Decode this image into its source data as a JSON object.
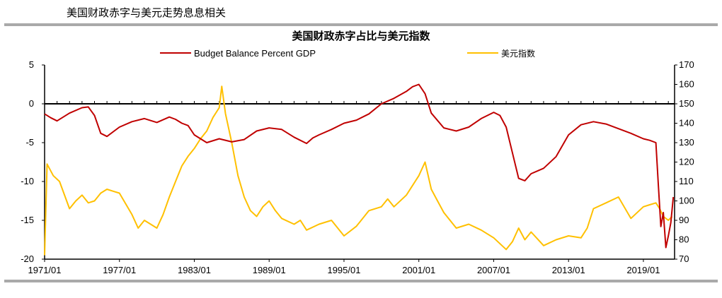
{
  "caption": "美国财政赤字与美元走势息息相关",
  "colors": {
    "budget": "#c00000",
    "usd": "#ffc000",
    "axis": "#000000",
    "rule": "#a9a9a9"
  },
  "chart_data": {
    "type": "line",
    "title": "美国财政赤字占比与美元指数",
    "legend_position": "top",
    "grid": false,
    "x_range": [
      "1971/01",
      "2021/06"
    ],
    "x_ticks": [
      "1971/01",
      "1977/01",
      "1983/01",
      "1989/01",
      "1995/01",
      "2001/01",
      "2007/01",
      "2013/01",
      "2019/01"
    ],
    "y_left": {
      "min": -20,
      "max": 5,
      "ticks": [
        5,
        0,
        -5,
        -10,
        -15,
        -20
      ]
    },
    "y_right": {
      "min": 70,
      "max": 170,
      "ticks": [
        170,
        160,
        150,
        140,
        130,
        120,
        110,
        100,
        90,
        80,
        70
      ]
    },
    "series": [
      {
        "name": "Budget Balance Percent GDP",
        "axis": "left",
        "x": [
          1971.0,
          1971.5,
          1972.0,
          1973.0,
          1974.0,
          1974.5,
          1975.0,
          1975.5,
          1976.0,
          1977.0,
          1978.0,
          1979.0,
          1980.0,
          1981.0,
          1981.5,
          1982.0,
          1982.5,
          1983.0,
          1984.0,
          1985.0,
          1986.0,
          1987.0,
          1988.0,
          1989.0,
          1990.0,
          1991.0,
          1992.0,
          1992.5,
          1993.0,
          1994.0,
          1995.0,
          1996.0,
          1997.0,
          1998.0,
          1999.0,
          2000.0,
          2000.5,
          2001.0,
          2001.5,
          2002.0,
          2003.0,
          2004.0,
          2005.0,
          2006.0,
          2007.0,
          2007.5,
          2008.0,
          2008.5,
          2009.0,
          2009.5,
          2010.0,
          2011.0,
          2012.0,
          2013.0,
          2014.0,
          2015.0,
          2016.0,
          2017.0,
          2018.0,
          2019.0,
          2019.5,
          2020.0,
          2020.2,
          2020.4,
          2020.6,
          2020.8,
          2021.0,
          2021.2,
          2021.4
        ],
        "y": [
          -1.3,
          -1.8,
          -2.2,
          -1.2,
          -0.5,
          -0.4,
          -1.5,
          -3.8,
          -4.2,
          -3.0,
          -2.3,
          -1.9,
          -2.4,
          -1.7,
          -2.0,
          -2.5,
          -2.8,
          -4.0,
          -5.0,
          -4.5,
          -4.9,
          -4.6,
          -3.5,
          -3.1,
          -3.3,
          -4.3,
          -5.1,
          -4.4,
          -4.0,
          -3.3,
          -2.5,
          -2.1,
          -1.3,
          0.0,
          0.7,
          1.6,
          2.2,
          2.5,
          1.3,
          -1.2,
          -3.1,
          -3.5,
          -3.0,
          -1.9,
          -1.1,
          -1.5,
          -3.0,
          -6.3,
          -9.6,
          -9.9,
          -9.0,
          -8.3,
          -6.8,
          -4.0,
          -2.7,
          -2.3,
          -2.6,
          -3.2,
          -3.8,
          -4.5,
          -4.7,
          -5.0,
          -10.5,
          -15.8,
          -14.0,
          -18.5,
          -17.0,
          -15.3,
          -12.0
        ]
      },
      {
        "name": "美元指数",
        "axis": "right",
        "x": [
          1971.0,
          1971.2,
          1971.7,
          1972.2,
          1973.0,
          1973.5,
          1974.0,
          1974.5,
          1975.0,
          1975.5,
          1976.0,
          1976.5,
          1977.0,
          1978.0,
          1978.5,
          1979.0,
          1979.5,
          1980.0,
          1980.5,
          1981.0,
          1981.5,
          1982.0,
          1982.5,
          1983.0,
          1983.5,
          1984.0,
          1984.5,
          1985.0,
          1985.2,
          1985.5,
          1986.0,
          1986.5,
          1987.0,
          1987.5,
          1988.0,
          1988.5,
          1989.0,
          1989.5,
          1990.0,
          1991.0,
          1991.5,
          1992.0,
          1993.0,
          1994.0,
          1995.0,
          1996.0,
          1997.0,
          1998.0,
          1998.5,
          1999.0,
          2000.0,
          2001.0,
          2001.5,
          2002.0,
          2002.5,
          2003.0,
          2004.0,
          2005.0,
          2006.0,
          2007.0,
          2008.0,
          2008.5,
          2009.0,
          2009.5,
          2010.0,
          2011.0,
          2012.0,
          2013.0,
          2014.0,
          2014.5,
          2015.0,
          2016.0,
          2017.0,
          2018.0,
          2019.0,
          2019.5,
          2020.0,
          2020.3,
          2020.6,
          2021.0,
          2021.3
        ],
        "y": [
          72.0,
          119.0,
          113.0,
          110.0,
          96.0,
          100.0,
          103.0,
          99.0,
          100.0,
          104.0,
          106.0,
          105.0,
          104.0,
          93.0,
          86.0,
          90.0,
          88.0,
          86.0,
          93.0,
          102.0,
          110.0,
          118.0,
          123.0,
          127.0,
          132.0,
          136.0,
          143.0,
          148.0,
          159.0,
          145.0,
          130.0,
          113.0,
          102.0,
          95.0,
          92.0,
          97.0,
          100.0,
          95.0,
          91.0,
          88.0,
          90.0,
          85.0,
          88.0,
          90.0,
          82.0,
          87.0,
          95.0,
          97.0,
          101.0,
          97.0,
          103.0,
          113.0,
          120.0,
          106.0,
          100.0,
          94.0,
          86.0,
          88.0,
          85.0,
          81.0,
          75.0,
          79.0,
          86.0,
          80.0,
          84.0,
          77.0,
          80.0,
          82.0,
          81.0,
          86.0,
          96.0,
          99.0,
          102.0,
          91.0,
          97.0,
          98.0,
          99.0,
          96.0,
          92.0,
          90.0,
          92.0
        ]
      }
    ]
  }
}
